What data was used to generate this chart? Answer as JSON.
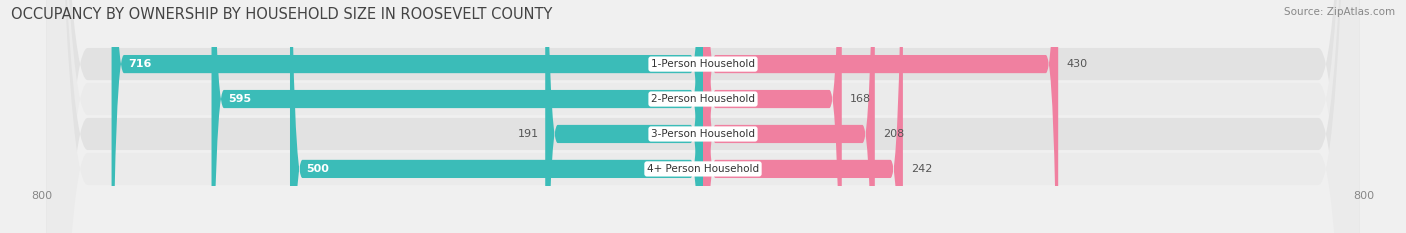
{
  "title": "OCCUPANCY BY OWNERSHIP BY HOUSEHOLD SIZE IN ROOSEVELT COUNTY",
  "source": "Source: ZipAtlas.com",
  "categories": [
    "1-Person Household",
    "2-Person Household",
    "3-Person Household",
    "4+ Person Household"
  ],
  "owner_values": [
    716,
    595,
    191,
    500
  ],
  "renter_values": [
    430,
    168,
    208,
    242
  ],
  "owner_color": "#3BBCB8",
  "owner_color_light": "#8ED8D5",
  "renter_color": "#F080A0",
  "renter_color_light": "#F5B8CC",
  "label_bg_color": "#FFFFFF",
  "axis_max": 800,
  "axis_min": -800,
  "bar_height": 0.52,
  "background_color": "#F0F0F0",
  "row_bg_color_dark": "#E2E2E2",
  "row_bg_color_light": "#EBEBEB",
  "title_fontsize": 10.5,
  "source_fontsize": 7.5,
  "tick_fontsize": 8,
  "legend_fontsize": 8,
  "value_fontsize": 8,
  "label_fontsize": 7.5,
  "owner_threshold": 250
}
